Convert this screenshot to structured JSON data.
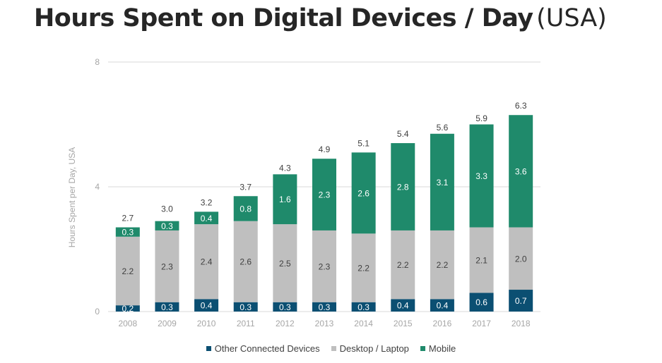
{
  "title": {
    "main": "Hours Spent on Digital Devices / Day",
    "sub": "(USA)"
  },
  "colors": {
    "other": "#0b4f72",
    "desktop": "#bfbfbf",
    "mobile": "#1f8a6b",
    "grid": "#d9d9d9",
    "axis_text": "#a6a6a6",
    "label_dark": "#404040",
    "label_light": "#ffffff"
  },
  "chart_data": {
    "type": "bar",
    "stacked": true,
    "title": "Hours Spent on Digital Devices / Day (USA)",
    "xlabel": "",
    "ylabel": "Hours Spent per Day, USA",
    "ylim": [
      0,
      8
    ],
    "yticks": [
      "0",
      "4",
      "8"
    ],
    "grid": true,
    "legend_position": "bottom",
    "categories": [
      "2008",
      "2009",
      "2010",
      "2011",
      "2012",
      "2013",
      "2014",
      "2015",
      "2016",
      "2017",
      "2018"
    ],
    "series": [
      {
        "name": "Other Connected Devices",
        "values": [
          0.2,
          0.3,
          0.4,
          0.3,
          0.3,
          0.3,
          0.3,
          0.4,
          0.4,
          0.6,
          0.7
        ]
      },
      {
        "name": "Desktop / Laptop",
        "values": [
          2.2,
          2.3,
          2.4,
          2.6,
          2.5,
          2.3,
          2.2,
          2.2,
          2.2,
          2.1,
          2.0
        ]
      },
      {
        "name": "Mobile",
        "values": [
          0.3,
          0.3,
          0.4,
          0.8,
          1.6,
          2.3,
          2.6,
          2.8,
          3.1,
          3.3,
          3.6
        ]
      }
    ],
    "segment_labels": [
      [
        "0.2",
        "0.3",
        "0.4",
        "0.3",
        "0.3",
        "0.3",
        "0.3",
        "0.4",
        "0.4",
        "0.6",
        "0.7"
      ],
      [
        "2.2",
        "2.3",
        "2.4",
        "2.6",
        "2.5",
        "2.3",
        "2.2",
        "2.2",
        "2.2",
        "2.1",
        "2.0"
      ],
      [
        "0.3",
        "0.3",
        "0.4",
        "0.8",
        "1.6",
        "2.3",
        "2.6",
        "2.8",
        "3.1",
        "3.3",
        "3.6"
      ]
    ],
    "totals": [
      2.7,
      3.0,
      3.2,
      3.7,
      4.3,
      4.9,
      5.1,
      5.4,
      5.6,
      5.9,
      6.3
    ],
    "total_labels": [
      "2.7",
      "3.0",
      "3.2",
      "3.7",
      "4.3",
      "4.9",
      "5.1",
      "5.4",
      "5.6",
      "5.9",
      "6.3"
    ]
  }
}
